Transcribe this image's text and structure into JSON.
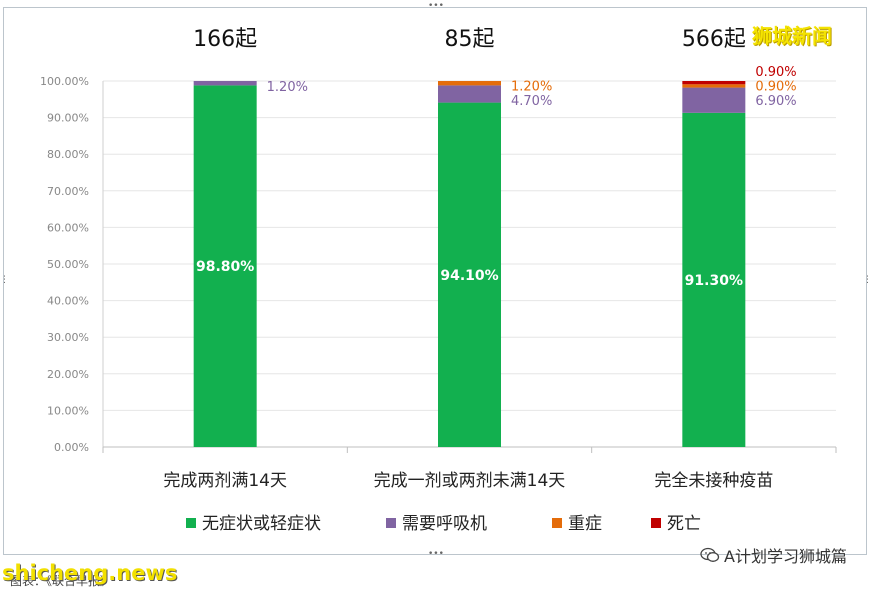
{
  "brand": {
    "name": "狮城新闻"
  },
  "watermark": {
    "site": "shicheng.news",
    "source": "图表：《联合早报》"
  },
  "wechat": {
    "label": "A计划学习狮城篇",
    "icon": "wechat-icon"
  },
  "chart_data": {
    "type": "bar",
    "stacked": true,
    "percent": true,
    "categories": [
      "完成两剂满14天",
      "完成一剂或两剂未满14天",
      "完全未接种疫苗"
    ],
    "counts": [
      "166起",
      "85起",
      "566起"
    ],
    "series": [
      {
        "name": "无症状或轻症状",
        "color": "#12b04f",
        "values": [
          98.8,
          94.1,
          91.3
        ],
        "labels": [
          "98.80%",
          "94.10%",
          "91.30%"
        ]
      },
      {
        "name": "需要呼吸机",
        "color": "#8064a2",
        "values": [
          1.2,
          4.7,
          6.9
        ],
        "labels": [
          "1.20%",
          "4.70%",
          "6.90%"
        ]
      },
      {
        "name": "重症",
        "color": "#e46c0a",
        "values": [
          0,
          1.2,
          0.9
        ],
        "labels": [
          "",
          "1.20%",
          "0.90%"
        ]
      },
      {
        "name": "死亡",
        "color": "#c00000",
        "values": [
          0,
          0,
          0.9
        ],
        "labels": [
          "",
          "",
          "0.90%"
        ]
      }
    ],
    "yticks": [
      "0.00%",
      "10.00%",
      "20.00%",
      "30.00%",
      "40.00%",
      "50.00%",
      "60.00%",
      "70.00%",
      "80.00%",
      "90.00%",
      "100.00%"
    ],
    "ylim": [
      0,
      100
    ],
    "grid": true,
    "legend_position": "bottom"
  }
}
